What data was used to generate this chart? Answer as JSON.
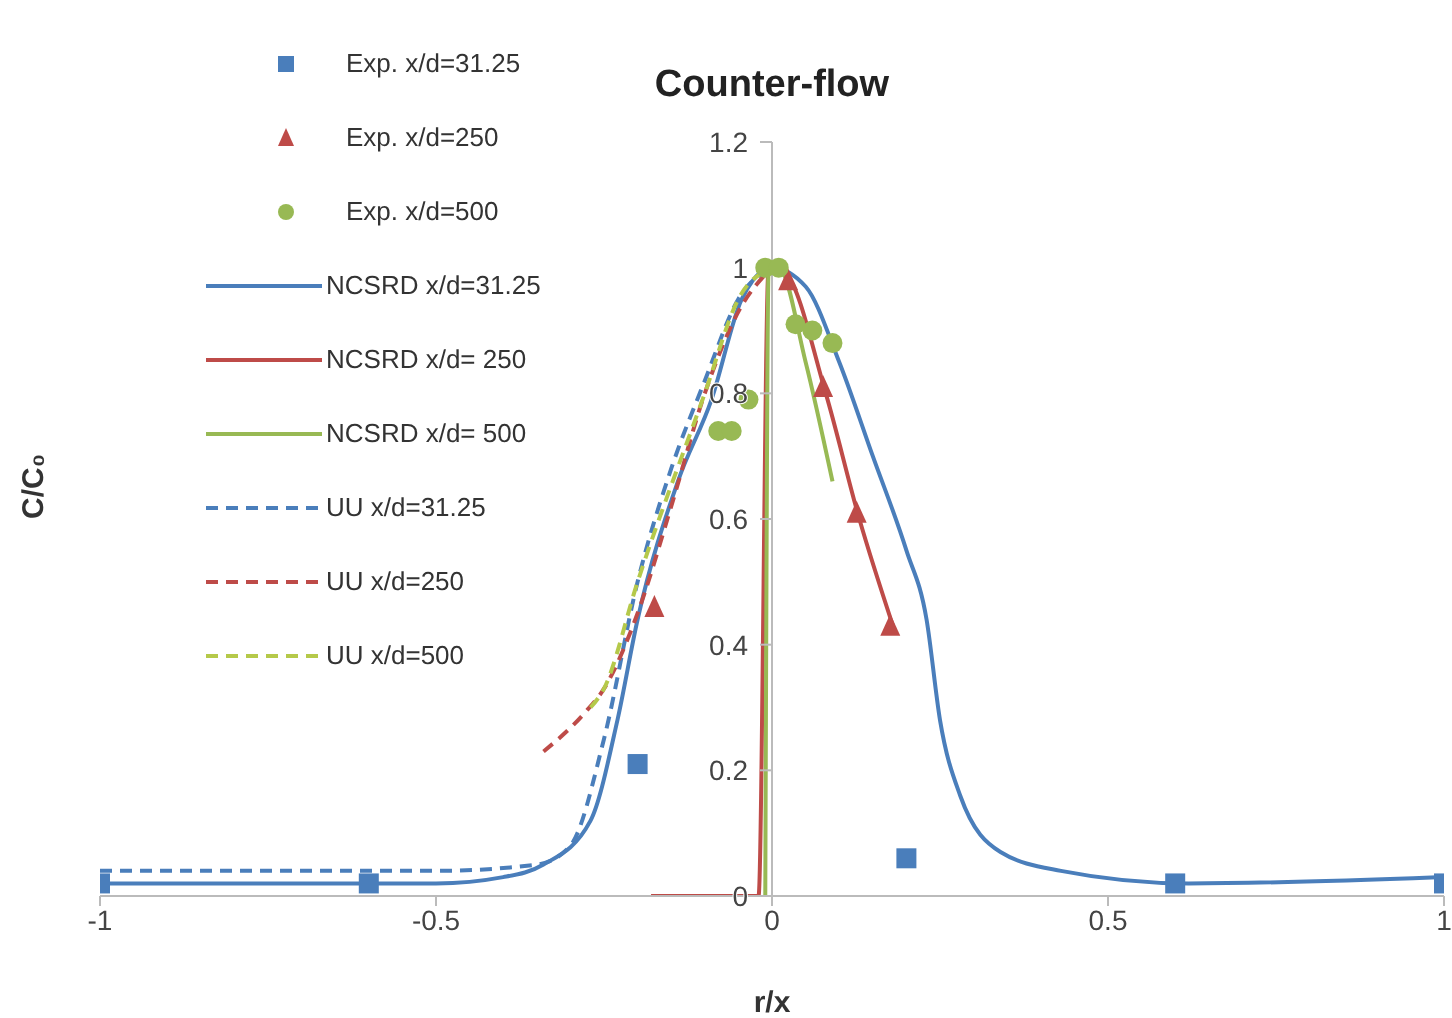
{
  "chart_data": {
    "type": "line",
    "title": "Counter-flow",
    "xlabel": "r/x",
    "ylabel": "C/C₀",
    "xlim": [
      -1,
      1
    ],
    "xticks": [
      -1,
      -0.5,
      0,
      0.5,
      1
    ],
    "ylim": [
      0,
      1.2
    ],
    "yticks": [
      0,
      0.2,
      0.4,
      0.6,
      0.8,
      1,
      1.2
    ],
    "grid": false,
    "legend": "top left",
    "series": [
      {
        "name": "Exp. x/d=31.25",
        "type": "scatter",
        "marker": "square",
        "color": "#4a7ebb",
        "x": [
          -1,
          -0.6,
          -0.2,
          0.2,
          0.6,
          1
        ],
        "values": [
          0.02,
          0.02,
          0.21,
          0.06,
          0.02,
          0.02
        ]
      },
      {
        "name": "Exp. x/d=250",
        "type": "scatter",
        "marker": "triangle",
        "color": "#be4b48",
        "x": [
          -0.175,
          0.024,
          0.076,
          0.126,
          0.176
        ],
        "values": [
          0.46,
          0.98,
          0.81,
          0.61,
          0.43
        ]
      },
      {
        "name": "Exp. x/d=500",
        "type": "scatter",
        "marker": "circle",
        "color": "#98b954",
        "x": [
          -0.08,
          -0.06,
          -0.035,
          -0.01,
          0.01,
          0.035,
          0.06,
          0.09
        ],
        "values": [
          0.74,
          0.74,
          0.79,
          1,
          1,
          0.91,
          0.9,
          0.88
        ]
      },
      {
        "name": "NCSRD x/d=31.25",
        "type": "line",
        "line_style": "solid",
        "color": "#4a7ebb",
        "x": [
          -1,
          -0.5,
          -0.4,
          -0.34,
          -0.27,
          -0.23,
          -0.2,
          -0.14,
          -0.09,
          -0.045,
          0,
          0.05,
          0.1,
          0.15,
          0.2,
          0.23,
          0.25,
          0.28,
          0.34,
          0.43,
          0.62,
          0.99
        ],
        "values": [
          0.02,
          0.02,
          0.03,
          0.05,
          0.12,
          0.28,
          0.44,
          0.66,
          0.79,
          0.95,
          1,
          0.97,
          0.85,
          0.7,
          0.55,
          0.44,
          0.28,
          0.16,
          0.07,
          0.04,
          0.02,
          0.03
        ]
      },
      {
        "name": "NCSRD x/d= 250",
        "type": "line",
        "line_style": "solid",
        "color": "#be4b48",
        "x": [
          -0.18,
          -0.05,
          -0.02,
          -0.005,
          0.02,
          0.08,
          0.13,
          0.18
        ],
        "values": [
          0,
          0,
          0,
          1,
          0.99,
          0.8,
          0.6,
          0.43
        ]
      },
      {
        "name": "NCSRD x/d= 500",
        "type": "line",
        "line_style": "solid",
        "color": "#98b954",
        "x": [
          -0.01,
          -0.005,
          0.01,
          0.05,
          0.09
        ],
        "values": [
          0,
          1,
          1,
          0.85,
          0.66
        ]
      },
      {
        "name": "UU x/d=31.25",
        "type": "line",
        "line_style": "dashed",
        "color": "#4a7ebb",
        "x": [
          -1,
          -0.5,
          -0.35,
          -0.3,
          -0.25,
          -0.2,
          -0.15,
          -0.1,
          -0.05,
          0
        ],
        "values": [
          0.04,
          0.04,
          0.05,
          0.08,
          0.25,
          0.5,
          0.68,
          0.82,
          0.95,
          1
        ]
      },
      {
        "name": "UU x/d=250",
        "type": "line",
        "line_style": "dashed",
        "color": "#be4b48",
        "x": [
          -0.34,
          -0.28,
          -0.25,
          -0.2,
          -0.15,
          -0.1,
          -0.05,
          0
        ],
        "values": [
          0.23,
          0.29,
          0.33,
          0.45,
          0.62,
          0.8,
          0.93,
          1
        ]
      },
      {
        "name": "UU x/d=500",
        "type": "line",
        "line_style": "dashed",
        "color": "#b5c94a",
        "x": [
          -0.27,
          -0.25,
          -0.2,
          -0.1,
          -0.05,
          0
        ],
        "values": [
          0.3,
          0.33,
          0.5,
          0.8,
          0.95,
          1
        ]
      }
    ]
  }
}
